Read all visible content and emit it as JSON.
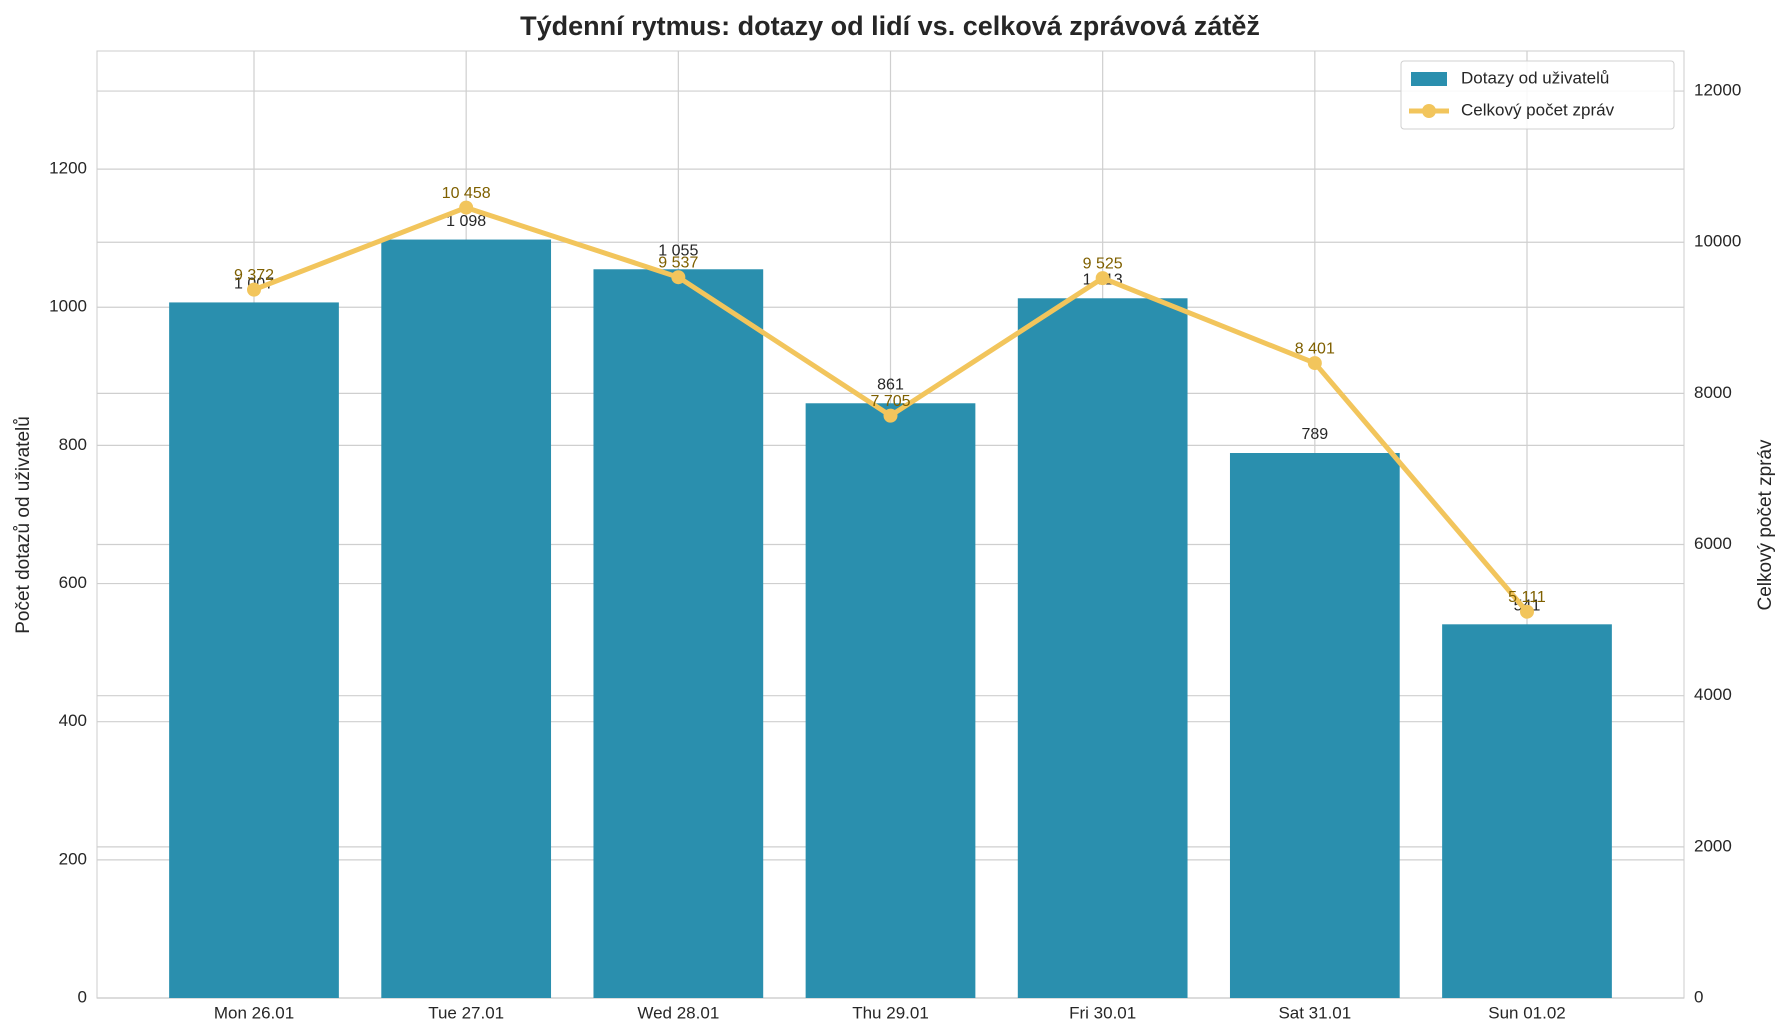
{
  "chart_data": {
    "type": "bar",
    "title": "Týdenní rytmus: dotazy od lidí vs. celková zprávová zátěž",
    "categories": [
      "Mon 26.01",
      "Tue 27.01",
      "Wed 28.01",
      "Thu 29.01",
      "Fri 30.01",
      "Sat 31.01",
      "Sun 01.02"
    ],
    "ylabel": "Počet dotazů od uživatelů",
    "y2label": "Celkový počet zpráv",
    "ylim": [
      0,
      1371
    ],
    "yticks": [
      0,
      200,
      400,
      600,
      800,
      1000,
      1200
    ],
    "y2lim": [
      0,
      12530
    ],
    "y2ticks": [
      0,
      2000,
      4000,
      6000,
      8000,
      10000,
      12000
    ],
    "grid": true,
    "legend": "upper right",
    "series": [
      {
        "name": "Dotazy od uživatelů",
        "type": "bar",
        "color": "#2a8fae",
        "values": [
          1007,
          1098,
          1055,
          861,
          1013,
          789,
          541
        ],
        "value_labels": [
          "1 007",
          "1 098",
          "1 055",
          "861",
          "1 013",
          "789",
          "541"
        ]
      },
      {
        "name": "Celkový počet zpráv",
        "type": "line",
        "axis": "y2",
        "color": "#f2c55c",
        "label_color": "#7f6000",
        "values": [
          9372,
          10458,
          9537,
          7705,
          9525,
          8401,
          5111
        ],
        "value_labels": [
          "9 372",
          "10 458",
          "9 537",
          "7 705",
          "9 525",
          "8 401",
          "5 111"
        ]
      }
    ]
  }
}
